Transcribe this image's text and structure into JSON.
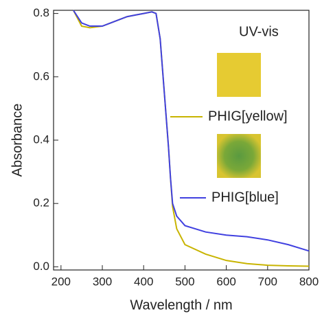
{
  "chart_data": {
    "type": "line",
    "annotation": "UV-vis",
    "x_label": "Wavelength / nm",
    "y_label": "Absorbance",
    "x": [
      230,
      250,
      270,
      300,
      320,
      340,
      360,
      380,
      400,
      420,
      430,
      440,
      450,
      460,
      465,
      470,
      480,
      500,
      550,
      600,
      650,
      700,
      750,
      800
    ],
    "series": [
      {
        "name": "PHIG[yellow]",
        "color": "#c8b400",
        "values": [
          0.81,
          0.76,
          0.755,
          0.76,
          0.77,
          0.78,
          0.79,
          0.795,
          0.8,
          0.805,
          0.8,
          0.72,
          0.55,
          0.38,
          0.28,
          0.19,
          0.12,
          0.07,
          0.04,
          0.02,
          0.01,
          0.005,
          0.003,
          0.002
        ]
      },
      {
        "name": "PHIG[blue]",
        "color": "#4040e0",
        "values": [
          0.81,
          0.77,
          0.76,
          0.76,
          0.77,
          0.78,
          0.79,
          0.795,
          0.8,
          0.805,
          0.8,
          0.72,
          0.55,
          0.38,
          0.28,
          0.2,
          0.16,
          0.13,
          0.11,
          0.1,
          0.095,
          0.085,
          0.07,
          0.05
        ]
      }
    ],
    "xlim": [
      182,
      800
    ],
    "ylim": [
      -0.01,
      0.81
    ],
    "xticks": [
      200,
      300,
      400,
      500,
      600,
      700,
      800
    ],
    "yticks": [
      {
        "value": 0,
        "label": "0.0"
      },
      0.2,
      0.4,
      0.6,
      0.8
    ]
  }
}
